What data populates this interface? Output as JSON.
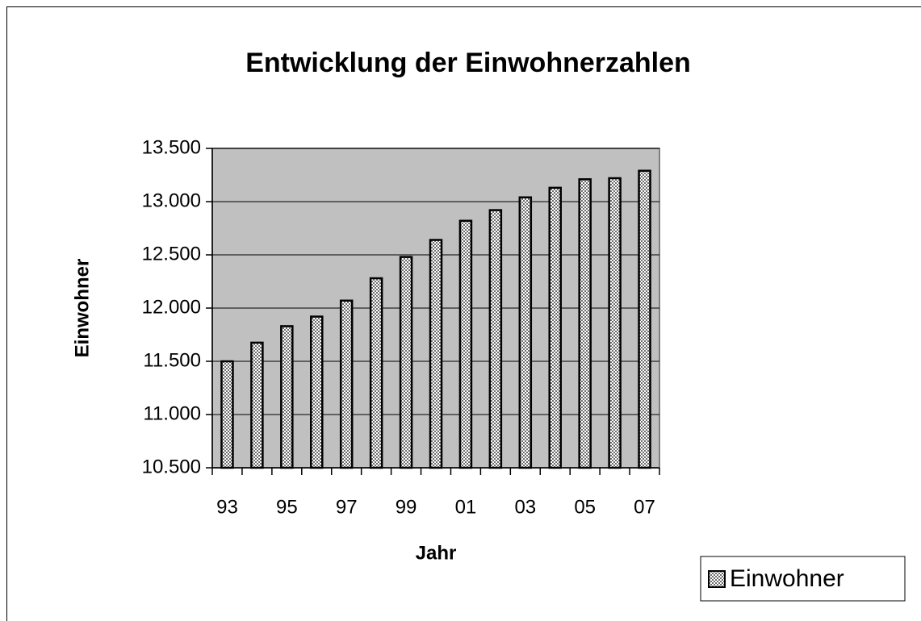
{
  "chart_data": {
    "type": "bar",
    "title": "Entwicklung der Einwohnerzahlen",
    "x_label": "Jahr",
    "y_label": "Einwohner",
    "categories": [
      "93",
      null,
      "95",
      null,
      "97",
      null,
      "99",
      null,
      "01",
      null,
      "03",
      null,
      "05",
      null,
      "07"
    ],
    "series": [
      {
        "name": "Einwohner",
        "color": "#6e6e6e",
        "values": [
          11500,
          11675,
          11830,
          11920,
          12070,
          12280,
          12480,
          12640,
          12820,
          12920,
          13040,
          13130,
          13210,
          13220,
          13290
        ]
      }
    ],
    "ylim": [
      10500,
      13500
    ],
    "yticks": [
      {
        "value": 10500,
        "label": "10.500"
      },
      {
        "value": 11000,
        "label": "11.000"
      },
      {
        "value": 11500,
        "label": "11.500"
      },
      {
        "value": 12000,
        "label": "12.000"
      },
      {
        "value": 12500,
        "label": "12.500"
      },
      {
        "value": 13000,
        "label": "13.000"
      },
      {
        "value": 13500,
        "label": "13.500"
      }
    ],
    "grid": true,
    "plot_background": "#c0c0c0",
    "legend": "bottom-right"
  }
}
